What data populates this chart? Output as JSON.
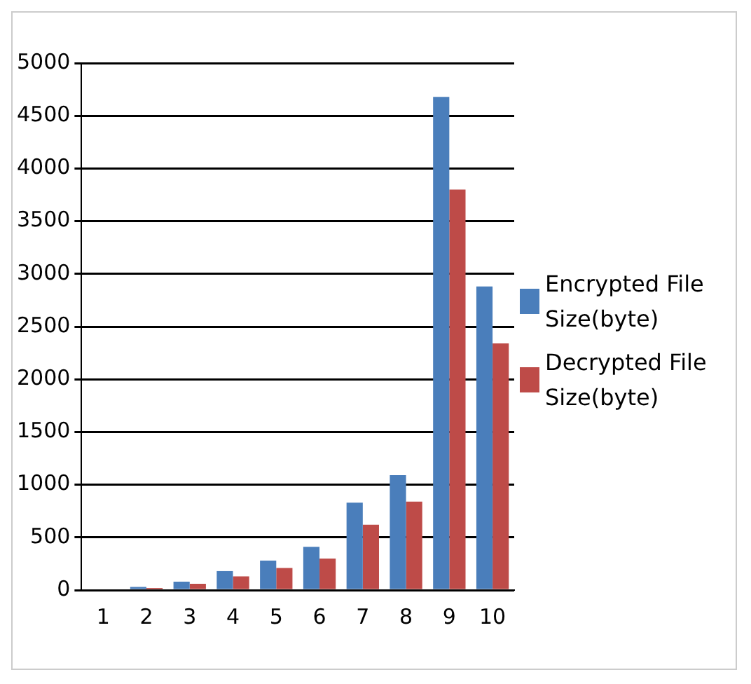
{
  "chart_data": {
    "type": "bar",
    "categories": [
      "1",
      "2",
      "3",
      "4",
      "5",
      "6",
      "7",
      "8",
      "9",
      "10"
    ],
    "series": [
      {
        "name": "Encrypted File Size(byte)",
        "color": "#4a7ebb",
        "values": [
          10,
          30,
          80,
          180,
          280,
          410,
          830,
          1090,
          4680,
          2880
        ]
      },
      {
        "name": "Decrypted File Size(byte)",
        "color": "#be4b48",
        "values": [
          10,
          20,
          60,
          130,
          210,
          300,
          620,
          840,
          3800,
          2340
        ]
      }
    ],
    "ylim": [
      0,
      5000
    ],
    "yticks": [
      0,
      500,
      1000,
      1500,
      2000,
      2500,
      3000,
      3500,
      4000,
      4500,
      5000
    ],
    "grid": "y",
    "legend": "right"
  }
}
